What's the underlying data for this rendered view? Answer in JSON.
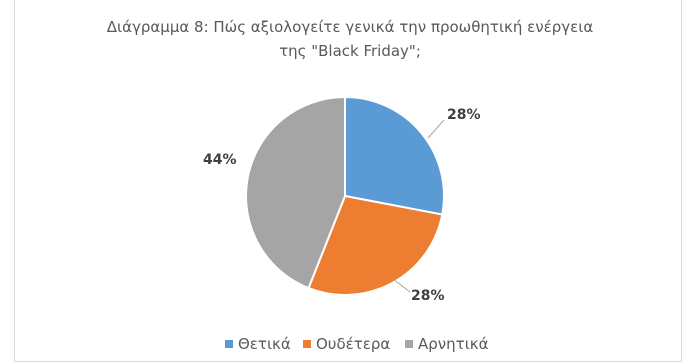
{
  "chart_data": {
    "type": "pie",
    "title_lines": [
      "Διάγραμμα 8: Πώς αξιολογείτε γενικά την προωθητική ενέργεια",
      "της \"Black Friday\";"
    ],
    "categories": [
      "Θετικά",
      "Ουδέτερα",
      "Αρνητικά"
    ],
    "values": [
      28,
      28,
      44
    ],
    "labels": [
      "28%",
      "28%",
      "44%"
    ],
    "colors": [
      "#5B9BD5",
      "#ED7D31",
      "#A5A5A5"
    ],
    "legend_position": "bottom"
  }
}
